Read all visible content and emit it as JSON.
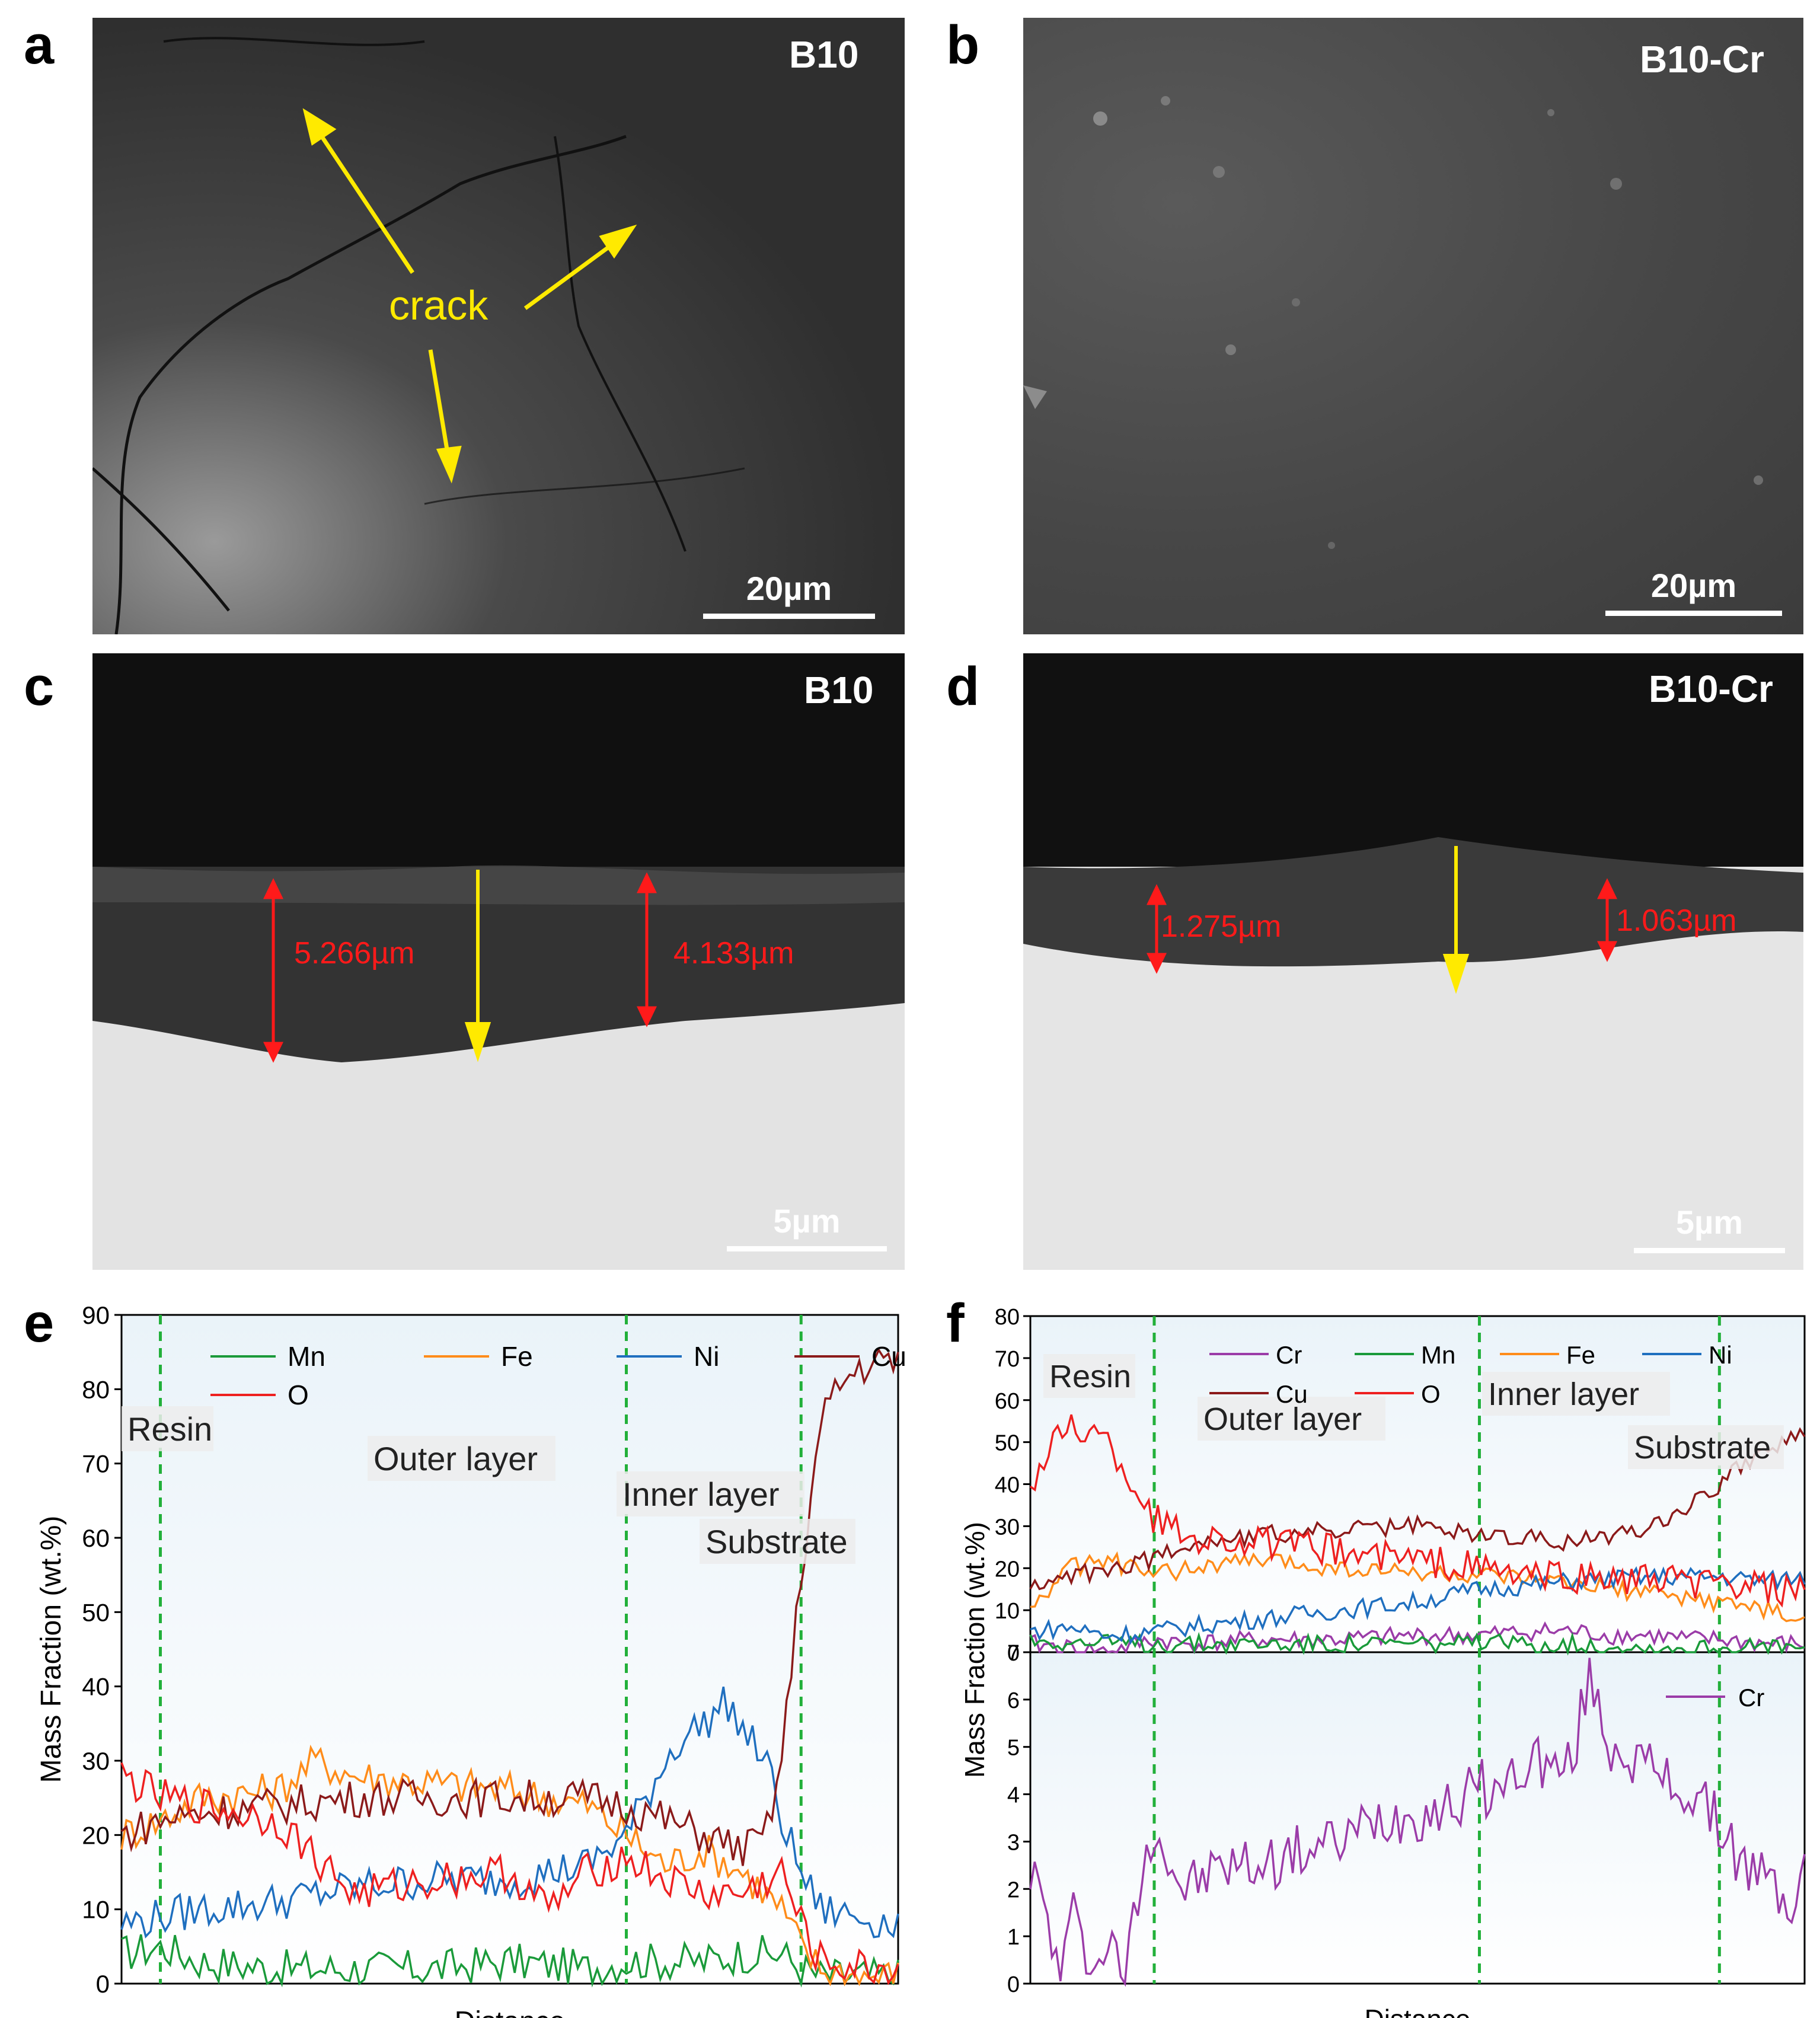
{
  "panels": {
    "a": {
      "letter": "a",
      "sample": "B10",
      "scale": "20µm",
      "annotation": "crack"
    },
    "b": {
      "letter": "b",
      "sample": "B10-Cr",
      "scale": "20µm"
    },
    "c": {
      "letter": "c",
      "sample": "B10",
      "scale": "5µm",
      "measurements": [
        "5.266µm",
        "4.133µm"
      ]
    },
    "d": {
      "letter": "d",
      "sample": "B10-Cr",
      "scale": "5µm",
      "measurements": [
        "1.275µm",
        "1.063µm"
      ]
    },
    "e": {
      "letter": "e"
    },
    "f": {
      "letter": "f"
    }
  },
  "colors": {
    "Mn": "#1a9a3a",
    "Fe": "#ff8c1a",
    "Ni": "#1f6fbf",
    "Cu": "#8b1a1a",
    "O": "#ee2020",
    "Cr": "#9b3ca8",
    "arrow_yellow": "#ffea00",
    "measure_red": "#ff1a1a",
    "divider_green": "#22b03a",
    "plot_bg_top": "#eaf3f9",
    "plot_bg_bottom": "#ffffff"
  },
  "chart_data": [
    {
      "id": "e",
      "type": "line",
      "xlabel": "Distance",
      "ylabel": "Mass Fraction (wt.%)",
      "ylim": [
        0,
        90
      ],
      "yticks": [
        "0",
        "10",
        "20",
        "30",
        "40",
        "50",
        "60",
        "70",
        "80",
        "90"
      ],
      "xlim": [
        0,
        100
      ],
      "region_dividers": [
        5,
        65,
        87.5
      ],
      "region_labels": [
        "Resin",
        "Outer layer",
        "Inner layer",
        "Substrate"
      ],
      "legend": [
        "Mn",
        "Fe",
        "Ni",
        "Cu",
        "O"
      ],
      "series": [
        {
          "name": "Mn",
          "x": [
            0,
            5,
            10,
            20,
            30,
            40,
            50,
            60,
            65,
            70,
            75,
            80,
            85,
            87.5,
            90,
            95,
            100
          ],
          "values": [
            4,
            5,
            3,
            2,
            2,
            2,
            3,
            2,
            3,
            3,
            3,
            4,
            4,
            2,
            1,
            1,
            1
          ]
        },
        {
          "name": "Fe",
          "x": [
            0,
            5,
            10,
            20,
            25,
            30,
            40,
            50,
            60,
            65,
            70,
            75,
            80,
            85,
            87.5,
            90,
            95,
            100
          ],
          "values": [
            20,
            22,
            25,
            26,
            30,
            28,
            27,
            26,
            24,
            20,
            16,
            18,
            15,
            10,
            5,
            2,
            1,
            1
          ]
        },
        {
          "name": "Ni",
          "x": [
            0,
            5,
            10,
            20,
            30,
            40,
            50,
            60,
            65,
            70,
            72,
            75,
            78,
            80,
            83,
            85,
            87.5,
            90,
            95,
            100
          ],
          "values": [
            8,
            9,
            10,
            11,
            13,
            14,
            14,
            16,
            20,
            30,
            33,
            35,
            38,
            34,
            30,
            22,
            15,
            10,
            9,
            8
          ]
        },
        {
          "name": "Cu",
          "x": [
            0,
            5,
            10,
            20,
            30,
            40,
            50,
            60,
            65,
            70,
            75,
            80,
            83,
            85,
            87.5,
            90,
            92,
            95,
            100
          ],
          "values": [
            20,
            22,
            23,
            24,
            25,
            25,
            25,
            25,
            24,
            22,
            20,
            18,
            20,
            30,
            55,
            75,
            80,
            83,
            84
          ]
        },
        {
          "name": "O",
          "x": [
            0,
            5,
            10,
            20,
            30,
            40,
            50,
            55,
            60,
            65,
            70,
            75,
            80,
            85,
            87.5,
            90,
            95,
            100
          ],
          "values": [
            28,
            25,
            24,
            22,
            12,
            14,
            15,
            10,
            15,
            17,
            14,
            12,
            12,
            15,
            8,
            3,
            2,
            2
          ]
        }
      ]
    },
    {
      "id": "f",
      "type": "line",
      "xlabel": "Distance",
      "ylabel": "Mass Fraction (wt.%)",
      "ylim_top": [
        0,
        80
      ],
      "yticks_top": [
        "0",
        "10",
        "20",
        "30",
        "40",
        "50",
        "60",
        "70",
        "80"
      ],
      "ylim_bottom": [
        0,
        7
      ],
      "yticks_bottom": [
        "0",
        "1",
        "2",
        "3",
        "4",
        "5",
        "6",
        "7"
      ],
      "xlim": [
        0,
        100
      ],
      "region_dividers": [
        16,
        58,
        89
      ],
      "region_labels": [
        "Resin",
        "Outer layer",
        "Inner layer",
        "Substrate"
      ],
      "legend": [
        "Cr",
        "Mn",
        "Fe",
        "Ni",
        "Cu",
        "O"
      ],
      "legend_bottom": [
        "Cr"
      ],
      "series": [
        {
          "name": "Cr",
          "x": [
            0,
            5,
            10,
            16,
            20,
            30,
            40,
            50,
            58,
            65,
            70,
            75,
            80,
            85,
            89,
            95,
            100
          ],
          "values": [
            2,
            1,
            0,
            3,
            2,
            3,
            3,
            4,
            4,
            5,
            5,
            4,
            4,
            3,
            3,
            2,
            2
          ]
        },
        {
          "name": "Mn",
          "x": [
            0,
            10,
            16,
            20,
            30,
            40,
            50,
            58,
            65,
            70,
            80,
            89,
            95,
            100
          ],
          "values": [
            3,
            2,
            2,
            2,
            2,
            2,
            2,
            2,
            2,
            2,
            1,
            1,
            1,
            1
          ]
        },
        {
          "name": "Fe",
          "x": [
            0,
            5,
            10,
            16,
            20,
            30,
            40,
            50,
            58,
            65,
            70,
            80,
            89,
            95,
            100
          ],
          "values": [
            10,
            20,
            22,
            18,
            20,
            22,
            20,
            19,
            18,
            17,
            16,
            14,
            12,
            10,
            7
          ]
        },
        {
          "name": "Ni",
          "x": [
            0,
            5,
            10,
            16,
            20,
            30,
            40,
            50,
            58,
            65,
            70,
            80,
            89,
            95,
            100
          ],
          "values": [
            5,
            6,
            4,
            5,
            6,
            8,
            10,
            12,
            15,
            16,
            17,
            18,
            18,
            17,
            18
          ]
        },
        {
          "name": "Cu",
          "x": [
            0,
            5,
            10,
            16,
            20,
            30,
            40,
            50,
            58,
            65,
            70,
            80,
            85,
            89,
            92,
            95,
            100
          ],
          "values": [
            15,
            18,
            20,
            22,
            26,
            28,
            29,
            30,
            28,
            27,
            26,
            30,
            35,
            40,
            45,
            48,
            52
          ]
        },
        {
          "name": "O",
          "x": [
            0,
            5,
            10,
            14,
            16,
            20,
            30,
            40,
            50,
            58,
            65,
            70,
            80,
            89,
            95,
            100
          ],
          "values": [
            40,
            55,
            50,
            38,
            32,
            28,
            26,
            24,
            22,
            20,
            18,
            18,
            17,
            16,
            15,
            14
          ]
        }
      ],
      "bottom_series": {
        "name": "Cr",
        "x": [
          0,
          2,
          4,
          6,
          8,
          10,
          12,
          14,
          16,
          18,
          20,
          25,
          30,
          35,
          40,
          45,
          50,
          55,
          58,
          60,
          65,
          68,
          70,
          72,
          75,
          78,
          80,
          85,
          89,
          92,
          95,
          98,
          100
        ],
        "values": [
          2.5,
          1.5,
          0,
          2,
          0,
          1,
          0,
          2,
          3.5,
          2.5,
          2,
          2.5,
          2.5,
          2.8,
          3,
          3.5,
          3.6,
          3.8,
          4.2,
          4,
          4.8,
          4.5,
          4.6,
          6.5,
          5,
          4.8,
          4.5,
          4,
          3.4,
          2.5,
          2.2,
          1.6,
          2.3
        ]
      }
    }
  ]
}
